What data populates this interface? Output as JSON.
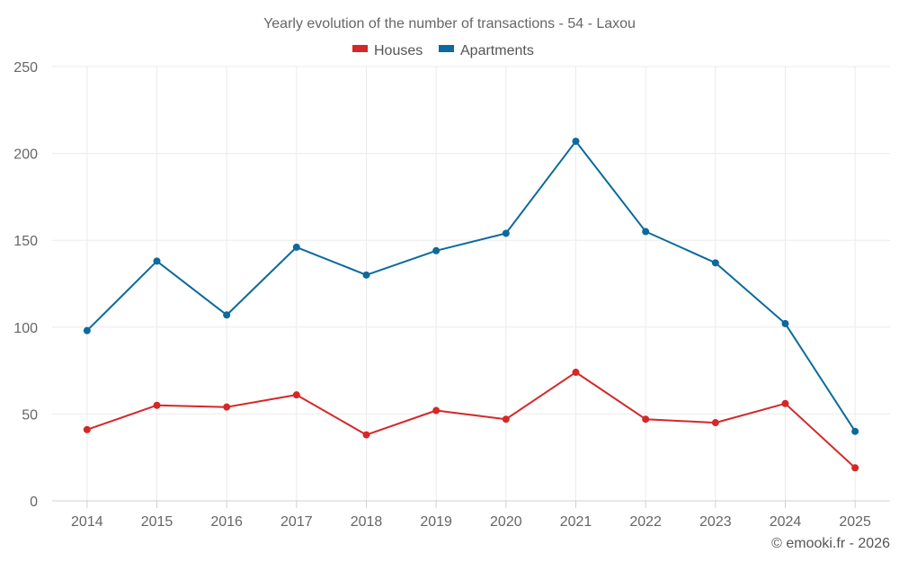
{
  "chart_data": {
    "type": "line",
    "title": "Yearly evolution of the number of transactions - 54 - Laxou",
    "categories": [
      "2014",
      "2015",
      "2016",
      "2017",
      "2018",
      "2019",
      "2020",
      "2021",
      "2022",
      "2023",
      "2024",
      "2025"
    ],
    "series": [
      {
        "name": "Houses",
        "color": "#d62728",
        "values": [
          41,
          55,
          54,
          61,
          38,
          52,
          47,
          74,
          47,
          45,
          56,
          19
        ]
      },
      {
        "name": "Apartments",
        "color": "#0c6a9c",
        "values": [
          98,
          138,
          107,
          146,
          130,
          144,
          154,
          207,
          155,
          137,
          102,
          40
        ]
      }
    ],
    "ylim": [
      0,
      250
    ],
    "yticks": [
      0,
      50,
      100,
      150,
      200,
      250
    ],
    "grid": true,
    "legend": "top-center",
    "xlabel": "",
    "ylabel": ""
  },
  "credit": "© emooki.fr - 2026"
}
